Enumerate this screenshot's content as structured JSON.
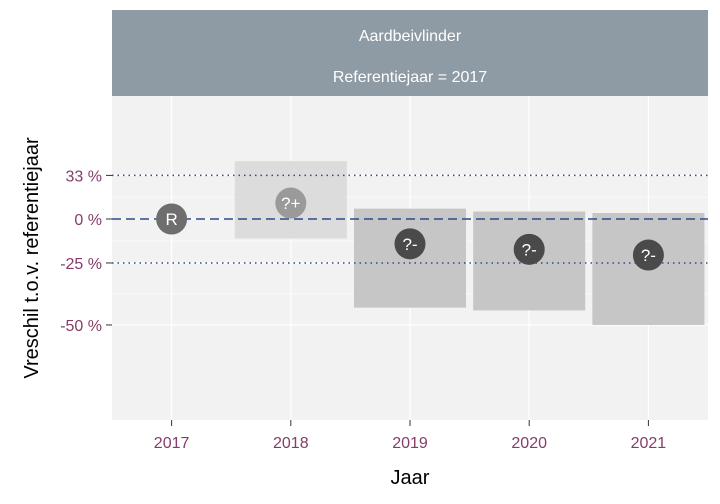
{
  "chart_data": {
    "type": "interval",
    "title": "Aardbeivlinder",
    "subtitle": "Referentiejaar = 2017",
    "xlabel": "Jaar",
    "ylabel": "Vreschil t.o.v. referentiejaar",
    "categories": [
      "2017",
      "2018",
      "2019",
      "2020",
      "2021"
    ],
    "y_ticks": [
      {
        "value": 33,
        "label": "33 %"
      },
      {
        "value": 0,
        "label": "0 %"
      },
      {
        "value": -25,
        "label": "-25 %"
      },
      {
        "value": -50,
        "label": "-50 %"
      }
    ],
    "y_scale": "log-ratio (percent change)",
    "estimates": [
      0,
      11,
      -15,
      -18,
      -21
    ],
    "lower": [
      null,
      -12,
      -44,
      -45,
      -50
    ],
    "upper": [
      null,
      46,
      7,
      5,
      4
    ],
    "point_labels": [
      "R",
      "?+",
      "?-",
      "?-",
      "?-"
    ],
    "reference_lines": [
      {
        "value": 33,
        "style": "dotted"
      },
      {
        "value": 0,
        "style": "dashed"
      },
      {
        "value": -25,
        "style": "dotted"
      }
    ],
    "colors": {
      "panel": "#f2f2f2",
      "strip": "#8e9ba5",
      "interval_light": "#dcdcdc",
      "interval_dark": "#c6c6c6",
      "point_light": "#9a9a9a",
      "point_dark": "#4a4a4a",
      "reference_line": "#2c4a8c",
      "tick_text": "#843d6a"
    },
    "grid": true,
    "legend": "none"
  }
}
